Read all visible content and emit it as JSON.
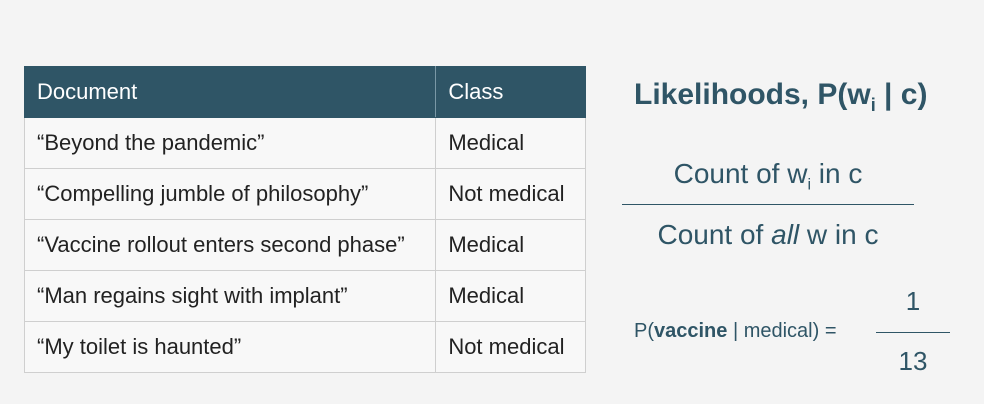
{
  "table": {
    "headers": [
      "Document",
      "Class"
    ],
    "rows": [
      {
        "document": "“Beyond the pandemic”",
        "class": "Medical"
      },
      {
        "document": "“Compelling jumble of philosophy”",
        "class": "Not medical"
      },
      {
        "document": "“Vaccine rollout enters second phase”",
        "class": "Medical"
      },
      {
        "document": "“Man regains sight with implant”",
        "class": "Medical"
      },
      {
        "document": "“My toilet is haunted”",
        "class": "Not medical"
      }
    ]
  },
  "likelihood": {
    "title_prefix": "Likelihoods, P(w",
    "title_sub": "i",
    "title_suffix": " | c)",
    "numerator_prefix": "Count of w",
    "numerator_sub": "i",
    "numerator_suffix": " in c",
    "denominator_prefix": "Count of ",
    "denominator_emph": "all",
    "denominator_suffix": " w in c"
  },
  "example": {
    "label_prefix": "P(",
    "label_bold": "vaccine",
    "label_suffix": " | medical) =",
    "numerator": "1",
    "denominator": "13"
  },
  "colors": {
    "header_bg": "#2f5566",
    "accent_text": "#2f5566"
  }
}
